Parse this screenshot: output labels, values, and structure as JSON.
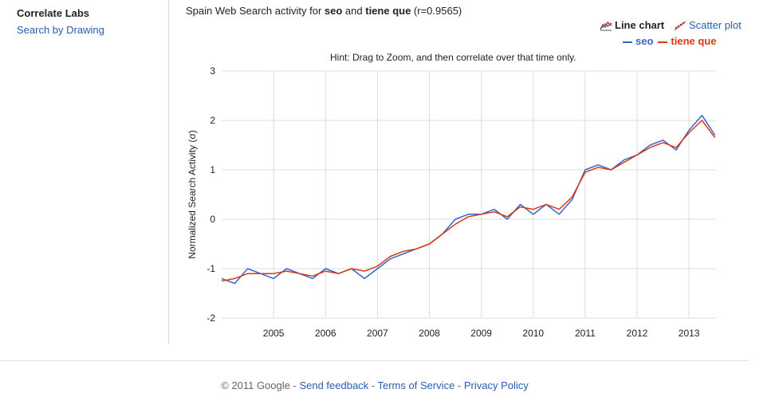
{
  "sidebar": {
    "brand": "Correlate Labs",
    "link": "Search by Drawing"
  },
  "header": {
    "title_prefix": "Spain Web Search activity for ",
    "term1": "seo",
    "title_and": " and ",
    "term2": "tiene que",
    "r_text": " (r=0.9565)"
  },
  "toggles": {
    "line_label": "Line chart",
    "scatter_label": "Scatter plot"
  },
  "hint": "Hint: Drag to Zoom, and then correlate over that time only.",
  "footer": {
    "copyright": "© 2011 Google",
    "sep": " - ",
    "feedback": "Send feedback",
    "terms": "Terms of Service",
    "privacy": "Privacy Policy"
  },
  "colors": {
    "seo": "#3366cc",
    "tiene_que": "#dc3912",
    "grid": "#dddddd",
    "link": "#2a5db0"
  },
  "chart_data": {
    "type": "line",
    "title": "Spain Web Search activity for seo and tiene que (r=0.9565)",
    "xlabel": "",
    "ylabel": "Normalized Search Activity (σ)",
    "xlim": [
      2004.0,
      2013.52
    ],
    "ylim": [
      -2,
      3
    ],
    "x_ticks": [
      "2005",
      "2006",
      "2007",
      "2008",
      "2009",
      "2010",
      "2011",
      "2012",
      "2013"
    ],
    "y_ticks": [
      "3",
      "2",
      "1",
      "0",
      "-1",
      "-2"
    ],
    "grid": true,
    "legend_position": "top-right",
    "x": [
      2004.0,
      2004.25,
      2004.5,
      2004.75,
      2005.0,
      2005.25,
      2005.5,
      2005.75,
      2006.0,
      2006.25,
      2006.5,
      2006.75,
      2007.0,
      2007.25,
      2007.5,
      2007.75,
      2008.0,
      2008.25,
      2008.5,
      2008.75,
      2009.0,
      2009.25,
      2009.5,
      2009.75,
      2010.0,
      2010.25,
      2010.5,
      2010.75,
      2011.0,
      2011.25,
      2011.5,
      2011.75,
      2012.0,
      2012.25,
      2012.5,
      2012.75,
      2013.0,
      2013.25,
      2013.5
    ],
    "series": [
      {
        "name": "seo",
        "values": [
          -1.2,
          -1.3,
          -1.0,
          -1.1,
          -1.2,
          -1.0,
          -1.1,
          -1.2,
          -1.0,
          -1.1,
          -1.0,
          -1.2,
          -1.0,
          -0.8,
          -0.7,
          -0.6,
          -0.5,
          -0.3,
          0.0,
          0.1,
          0.1,
          0.2,
          0.0,
          0.3,
          0.1,
          0.3,
          0.1,
          0.4,
          1.0,
          1.1,
          1.0,
          1.2,
          1.3,
          1.5,
          1.6,
          1.4,
          1.8,
          2.1,
          1.7
        ]
      },
      {
        "name": "tiene que",
        "values": [
          -1.25,
          -1.2,
          -1.1,
          -1.1,
          -1.1,
          -1.05,
          -1.1,
          -1.15,
          -1.05,
          -1.1,
          -1.0,
          -1.05,
          -0.95,
          -0.75,
          -0.65,
          -0.6,
          -0.5,
          -0.3,
          -0.1,
          0.05,
          0.1,
          0.15,
          0.05,
          0.25,
          0.2,
          0.3,
          0.2,
          0.45,
          0.95,
          1.05,
          1.0,
          1.15,
          1.3,
          1.45,
          1.55,
          1.45,
          1.75,
          2.0,
          1.65
        ]
      }
    ]
  }
}
